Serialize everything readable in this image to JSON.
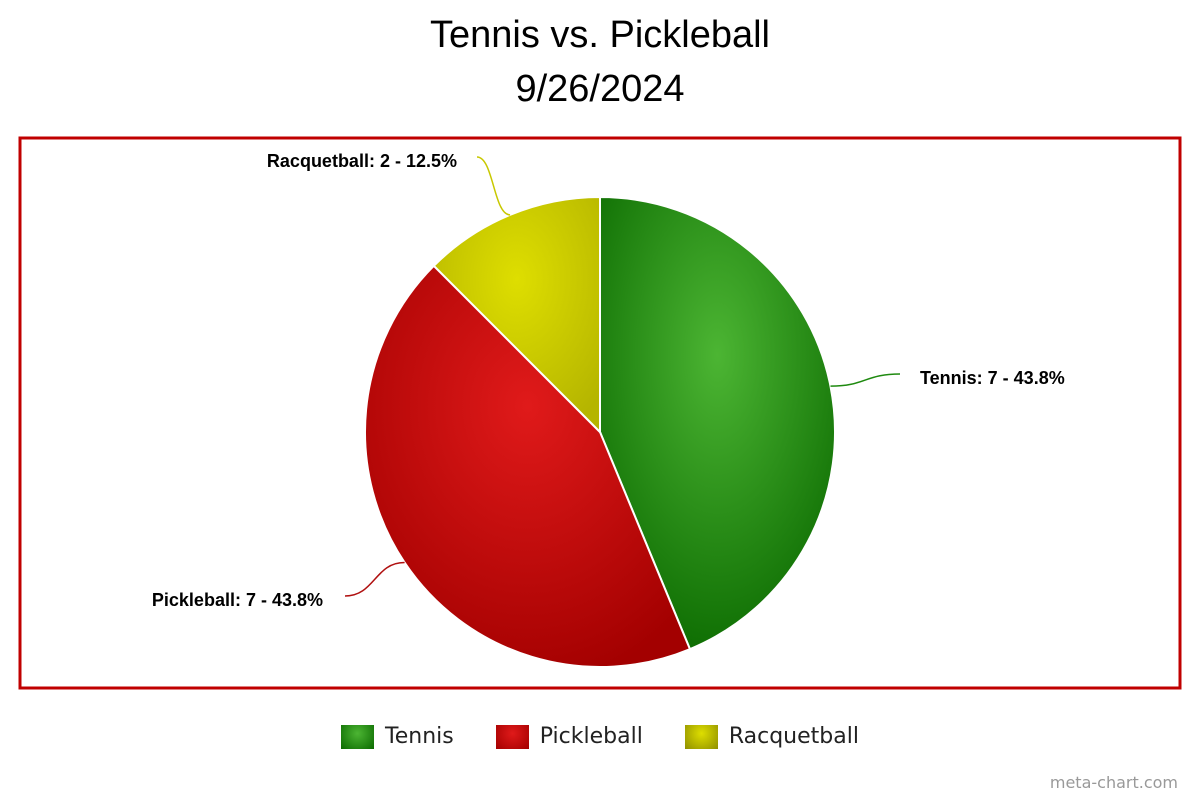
{
  "chart_data": {
    "type": "pie",
    "title": "Tennis vs. Pickleball",
    "subtitle": "9/26/2024",
    "categories": [
      "Tennis",
      "Pickleball",
      "Racquetball"
    ],
    "values": [
      7,
      7,
      2
    ],
    "percents": [
      "43.8%",
      "43.8%",
      "12.5%"
    ],
    "data_labels": [
      "Tennis: 7 - 43.8%",
      "Pickleball: 7 - 43.8%",
      "Racquetball: 2 - 12.5%"
    ],
    "colors": [
      "#2e8b1f",
      "#c81010",
      "#c8c800"
    ],
    "legend_position": "bottom",
    "frame_color": "#c00000"
  },
  "legend": {
    "items": [
      {
        "label": "Tennis",
        "color": "#2e8b1f"
      },
      {
        "label": "Pickleball",
        "color": "#c81010"
      },
      {
        "label": "Racquetball",
        "color": "#c8c800"
      }
    ]
  },
  "watermark": "meta-chart.com"
}
